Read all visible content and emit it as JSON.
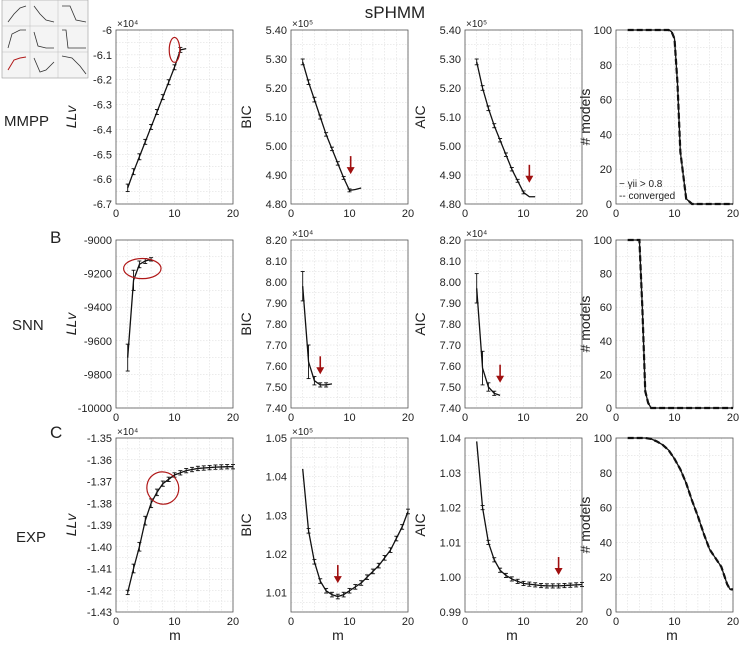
{
  "title": "sPHMM",
  "rows": [
    {
      "label": "MMPP",
      "panel_label": ""
    },
    {
      "label": "SNN",
      "panel_label": "B"
    },
    {
      "label": "EXP",
      "panel_label": "C"
    }
  ],
  "xlabel": "m",
  "legend": {
    "line1": "− γii > 0.8",
    "line2": "-- converged"
  },
  "colors": {
    "line": "#111111",
    "arrow": "#a01010",
    "grid": "#d8d8d8"
  },
  "chart_data": [
    {
      "id": "mmpp-ll",
      "type": "line",
      "row": 0,
      "col": 0,
      "ylabel": "LLv",
      "multiplier": "×10⁴",
      "xlim": [
        0,
        20
      ],
      "ylim": [
        -6.7,
        -6.0
      ],
      "xticks": [
        0,
        10,
        20
      ],
      "yticks": [
        -6.7,
        -6.6,
        -6.5,
        -6.4,
        -6.3,
        -6.2,
        -6.1,
        -6.0
      ],
      "yticklabels": [
        "-6.7",
        "-6.6",
        "-6.5",
        "-6.4",
        "-6.3",
        "-6.2",
        "-6.1",
        "-6"
      ],
      "x": [
        2,
        3,
        4,
        5,
        6,
        7,
        8,
        9,
        10,
        11,
        12
      ],
      "y": [
        -6.635,
        -6.57,
        -6.51,
        -6.45,
        -6.39,
        -6.33,
        -6.27,
        -6.21,
        -6.15,
        -6.08,
        -6.075
      ],
      "err": [
        0.015,
        0.012,
        0.012,
        0.01,
        0.01,
        0.01,
        0.01,
        0.01,
        0.01,
        0.01,
        0.0
      ],
      "circle": {
        "x": 10,
        "y": -6.08,
        "rx": 0.9,
        "ry": 0.05
      }
    },
    {
      "id": "mmpp-bic",
      "type": "line",
      "row": 0,
      "col": 1,
      "ylabel": "BIC",
      "multiplier": "×10⁵",
      "xlim": [
        0,
        20
      ],
      "ylim": [
        4.8,
        5.4
      ],
      "xticks": [
        0,
        10,
        20
      ],
      "yticks": [
        4.8,
        4.9,
        5.0,
        5.1,
        5.2,
        5.3,
        5.4
      ],
      "yticklabels": [
        "4.80",
        "4.90",
        "5.00",
        "5.10",
        "5.20",
        "5.30",
        "5.40"
      ],
      "x": [
        2,
        3,
        4,
        5,
        6,
        7,
        8,
        9,
        10,
        11,
        12
      ],
      "y": [
        5.29,
        5.22,
        5.16,
        5.1,
        5.04,
        4.99,
        4.94,
        4.89,
        4.847,
        4.85,
        4.855
      ],
      "err": [
        0.01,
        0.008,
        0.008,
        0.007,
        0.006,
        0.006,
        0.006,
        0.005,
        0.005,
        0.0,
        0.0
      ],
      "arrow": {
        "x": 10.2,
        "y": 4.91
      }
    },
    {
      "id": "mmpp-aic",
      "type": "line",
      "row": 0,
      "col": 2,
      "ylabel": "AIC",
      "multiplier": "×10⁵",
      "xlim": [
        0,
        20
      ],
      "ylim": [
        4.8,
        5.4
      ],
      "xticks": [
        0,
        10,
        20
      ],
      "yticks": [
        4.8,
        4.9,
        5.0,
        5.1,
        5.2,
        5.3,
        5.4
      ],
      "yticklabels": [
        "4.80",
        "4.90",
        "5.00",
        "5.10",
        "5.20",
        "5.30",
        "5.40"
      ],
      "x": [
        2,
        3,
        4,
        5,
        6,
        7,
        8,
        9,
        10,
        11,
        12
      ],
      "y": [
        5.29,
        5.2,
        5.13,
        5.07,
        5.02,
        4.97,
        4.92,
        4.88,
        4.84,
        4.825,
        4.825
      ],
      "err": [
        0.01,
        0.008,
        0.008,
        0.007,
        0.006,
        0.006,
        0.006,
        0.005,
        0.005,
        0.0,
        0.0
      ],
      "arrow": {
        "x": 11,
        "y": 4.88
      }
    },
    {
      "id": "mmpp-models",
      "type": "line",
      "row": 0,
      "col": 3,
      "ylabel": "# models",
      "multiplier": "",
      "xlim": [
        0,
        20
      ],
      "ylim": [
        0,
        100
      ],
      "xticks": [
        0,
        10,
        20
      ],
      "yticks": [
        0,
        20,
        40,
        60,
        80,
        100
      ],
      "yticklabels": [
        "0",
        "20",
        "40",
        "60",
        "80",
        "100"
      ],
      "x": [
        2,
        3,
        4,
        5,
        6,
        7,
        8,
        9,
        9.5,
        10,
        10.5,
        11,
        12,
        13,
        14,
        15,
        16,
        17,
        18,
        19,
        20
      ],
      "y": [
        100,
        100,
        100,
        100,
        100,
        100,
        100,
        100,
        99,
        95,
        70,
        30,
        3,
        0,
        0,
        0,
        0,
        0,
        0,
        0,
        0
      ],
      "legend": true
    },
    {
      "id": "snn-ll",
      "type": "line",
      "row": 1,
      "col": 0,
      "ylabel": "LLv",
      "multiplier": "",
      "xlim": [
        0,
        20
      ],
      "ylim": [
        -10000,
        -9000
      ],
      "xticks": [
        0,
        10,
        20
      ],
      "yticks": [
        -10000,
        -9800,
        -9600,
        -9400,
        -9200,
        -9000
      ],
      "yticklabels": [
        "-10000",
        "-9800",
        "-9600",
        "-9400",
        "-9200",
        "-9000"
      ],
      "x": [
        2,
        3,
        4,
        5,
        6
      ],
      "y": [
        -9700,
        -9240,
        -9145,
        -9125,
        -9115
      ],
      "err": [
        80,
        60,
        20,
        15,
        10
      ],
      "circle": {
        "x": 4.5,
        "y": -9170,
        "rx": 3.2,
        "ry": 60
      }
    },
    {
      "id": "snn-bic",
      "type": "line",
      "row": 1,
      "col": 1,
      "ylabel": "BIC",
      "multiplier": "×10⁴",
      "xlim": [
        0,
        20
      ],
      "ylim": [
        7.4,
        8.2
      ],
      "xticks": [
        0,
        10,
        20
      ],
      "yticks": [
        7.4,
        7.5,
        7.6,
        7.7,
        7.8,
        7.9,
        8.0,
        8.1,
        8.2
      ],
      "yticklabels": [
        "7.40",
        "7.50",
        "7.60",
        "7.70",
        "7.80",
        "7.90",
        "8.00",
        "8.10",
        "8.20"
      ],
      "x": [
        2,
        3,
        4,
        5,
        6,
        7
      ],
      "y": [
        7.98,
        7.62,
        7.53,
        7.51,
        7.51,
        7.515
      ],
      "err": [
        0.07,
        0.08,
        0.02,
        0.01,
        0.01,
        0.0
      ],
      "arrow": {
        "x": 5,
        "y": 7.57
      }
    },
    {
      "id": "snn-aic",
      "type": "line",
      "row": 1,
      "col": 2,
      "ylabel": "AIC",
      "multiplier": "×10⁴",
      "xlim": [
        0,
        20
      ],
      "ylim": [
        7.4,
        8.2
      ],
      "xticks": [
        0,
        10,
        20
      ],
      "yticks": [
        7.4,
        7.5,
        7.6,
        7.7,
        7.8,
        7.9,
        8.0,
        8.1,
        8.2
      ],
      "yticklabels": [
        "7.40",
        "7.50",
        "7.60",
        "7.70",
        "7.80",
        "7.90",
        "8.00",
        "8.10",
        "8.20"
      ],
      "x": [
        2,
        3,
        4,
        5,
        6
      ],
      "y": [
        7.97,
        7.59,
        7.5,
        7.47,
        7.46
      ],
      "err": [
        0.07,
        0.08,
        0.02,
        0.01,
        0.0
      ],
      "arrow": {
        "x": 6,
        "y": 7.53
      }
    },
    {
      "id": "snn-models",
      "type": "line",
      "row": 1,
      "col": 3,
      "ylabel": "# models",
      "multiplier": "",
      "xlim": [
        0,
        20
      ],
      "ylim": [
        0,
        100
      ],
      "xticks": [
        0,
        10,
        20
      ],
      "yticks": [
        0,
        20,
        40,
        60,
        80,
        100
      ],
      "yticklabels": [
        "0",
        "20",
        "40",
        "60",
        "80",
        "100"
      ],
      "x": [
        2,
        3,
        4,
        4.5,
        5,
        5.5,
        6,
        7,
        8,
        10,
        12,
        14,
        16,
        18,
        20
      ],
      "y": [
        100,
        100,
        100,
        60,
        10,
        3,
        0,
        0,
        0,
        0,
        0,
        0,
        0,
        0,
        0
      ],
      "legend": false
    },
    {
      "id": "exp-ll",
      "type": "line",
      "row": 2,
      "col": 0,
      "ylabel": "LLv",
      "multiplier": "×10⁴",
      "xlim": [
        0,
        20
      ],
      "ylim": [
        -1.43,
        -1.35
      ],
      "xticks": [
        0,
        10,
        20
      ],
      "yticks": [
        -1.43,
        -1.42,
        -1.41,
        -1.4,
        -1.39,
        -1.38,
        -1.37,
        -1.36,
        -1.35
      ],
      "yticklabels": [
        "-1.43",
        "-1.42",
        "-1.41",
        "-1.40",
        "-1.39",
        "-1.38",
        "-1.37",
        "-1.36",
        "-1.35"
      ],
      "x": [
        2,
        3,
        4,
        5,
        6,
        7,
        8,
        9,
        10,
        11,
        12,
        13,
        14,
        15,
        16,
        17,
        18,
        19,
        20
      ],
      "y": [
        -1.421,
        -1.41,
        -1.4,
        -1.388,
        -1.38,
        -1.375,
        -1.371,
        -1.369,
        -1.367,
        -1.366,
        -1.365,
        -1.3645,
        -1.364,
        -1.3638,
        -1.3636,
        -1.3634,
        -1.3633,
        -1.3632,
        -1.3632
      ],
      "err": [
        0.001,
        0.002,
        0.002,
        0.002,
        0.002,
        0.0015,
        0.0012,
        0.001,
        0.001,
        0.001,
        0.001,
        0.001,
        0.001,
        0.001,
        0.001,
        0.001,
        0.001,
        0.001,
        0.001
      ],
      "circle": {
        "x": 8,
        "y": -1.373,
        "rx": 2.7,
        "ry": 0.0075
      }
    },
    {
      "id": "exp-bic",
      "type": "line",
      "row": 2,
      "col": 1,
      "ylabel": "BIC",
      "multiplier": "×10⁵",
      "xlim": [
        0,
        20
      ],
      "ylim": [
        1.005,
        1.05
      ],
      "xticks": [
        0,
        10,
        20
      ],
      "yticks": [
        1.005,
        1.01,
        1.015,
        1.02,
        1.025,
        1.03,
        1.035,
        1.04,
        1.045,
        1.05
      ],
      "yticklabels": [
        "",
        "1.01",
        "",
        "1.02",
        "",
        "1.03",
        "",
        "1.04",
        "",
        "1.05"
      ],
      "x": [
        2,
        3,
        4,
        5,
        6,
        7,
        8,
        9,
        10,
        11,
        12,
        13,
        14,
        15,
        16,
        17,
        18,
        19,
        20
      ],
      "y": [
        1.042,
        1.026,
        1.018,
        1.013,
        1.0105,
        1.0095,
        1.009,
        1.0095,
        1.0105,
        1.0115,
        1.0125,
        1.014,
        1.0155,
        1.017,
        1.019,
        1.021,
        1.024,
        1.027,
        1.031
      ],
      "err": [
        0.0,
        0.0006,
        0.0006,
        0.0006,
        0.0006,
        0.0006,
        0.0006,
        0.0006,
        0.0006,
        0.0006,
        0.0006,
        0.0006,
        0.0006,
        0.0006,
        0.0006,
        0.0006,
        0.0006,
        0.0006,
        0.0006
      ],
      "arrow": {
        "x": 8,
        "y": 1.013
      }
    },
    {
      "id": "exp-aic",
      "type": "line",
      "row": 2,
      "col": 2,
      "ylabel": "AIC",
      "multiplier": "",
      "xlim": [
        0,
        20
      ],
      "ylim": [
        0.99,
        1.04
      ],
      "xticks": [
        0,
        10,
        20
      ],
      "yticks": [
        0.99,
        1.0,
        1.01,
        1.02,
        1.03,
        1.04
      ],
      "yticklabels": [
        "0.99",
        "1.00",
        "1.01",
        "1.02",
        "1.03",
        "1.04"
      ],
      "x": [
        2,
        3,
        4,
        5,
        6,
        7,
        8,
        9,
        10,
        11,
        12,
        13,
        14,
        15,
        16,
        17,
        18,
        19,
        20
      ],
      "y": [
        1.039,
        1.02,
        1.01,
        1.005,
        1.002,
        1.0005,
        0.9995,
        0.9988,
        0.9982,
        0.998,
        0.9978,
        0.9976,
        0.9975,
        0.9975,
        0.9975,
        0.9976,
        0.9977,
        0.9978,
        0.9979
      ],
      "err": [
        0.0,
        0.0006,
        0.0006,
        0.0006,
        0.0006,
        0.0006,
        0.0006,
        0.0006,
        0.0006,
        0.0006,
        0.0006,
        0.0006,
        0.0006,
        0.0006,
        0.0006,
        0.0006,
        0.0006,
        0.0006,
        0.0006
      ],
      "arrow": {
        "x": 16,
        "y": 1.0012
      }
    },
    {
      "id": "exp-models",
      "type": "line",
      "row": 2,
      "col": 3,
      "ylabel": "# models",
      "multiplier": "",
      "xlim": [
        0,
        20
      ],
      "ylim": [
        0,
        100
      ],
      "xticks": [
        0,
        10,
        20
      ],
      "yticks": [
        0,
        20,
        40,
        60,
        80,
        100
      ],
      "yticklabels": [
        "0",
        "20",
        "40",
        "60",
        "80",
        "100"
      ],
      "x": [
        2,
        3,
        4,
        5,
        6,
        7,
        8,
        9,
        10,
        11,
        12,
        13,
        14,
        15,
        16,
        17,
        18,
        19,
        19.5,
        20
      ],
      "y": [
        100,
        100,
        100,
        100,
        99.5,
        98,
        96,
        93,
        88,
        82,
        74,
        64,
        55,
        45,
        36,
        31,
        26,
        16,
        13,
        13
      ],
      "legend": false
    }
  ]
}
